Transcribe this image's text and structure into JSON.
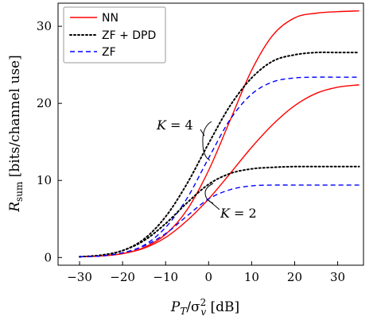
{
  "chart_data": {
    "type": "line",
    "xlabel": {
      "main": "P",
      "sub": "T",
      "sep": "/σ",
      "sup": "2",
      "sub2": "v",
      "unit": " [dB]"
    },
    "ylabel": {
      "main": "R",
      "sub": "sum",
      "unit": " [bits/channel use]"
    },
    "xlim": [
      -35,
      36
    ],
    "ylim": [
      -1,
      33
    ],
    "xticks": [
      -30,
      -20,
      -10,
      0,
      10,
      20,
      30
    ],
    "xtick_labels": [
      "−30",
      "−20",
      "−10",
      "0",
      "10",
      "20",
      "30"
    ],
    "yticks": [
      0,
      10,
      20,
      30
    ],
    "ytick_labels": [
      "0",
      "10",
      "20",
      "30"
    ],
    "grid": false,
    "legend_position": "top-left",
    "legend": [
      {
        "label": "NN",
        "color": "#ff0000",
        "dash": "solid"
      },
      {
        "label": "ZF + DPD",
        "color": "#000000",
        "dash": "dotted"
      },
      {
        "label": "ZF",
        "color": "#0000ff",
        "dash": "dashed"
      }
    ],
    "annotations": [
      {
        "text": "K = 4",
        "var": "K",
        "value": "4"
      },
      {
        "text": "K = 2",
        "var": "K",
        "value": "2"
      }
    ],
    "x": [
      -30,
      -25,
      -20,
      -15,
      -10,
      -5,
      0,
      5,
      10,
      15,
      20,
      25,
      30,
      35
    ],
    "series": [
      {
        "name": "NN",
        "group": "K = 4",
        "color": "#ff0000",
        "dash": "solid",
        "values": [
          0.1,
          0.2,
          0.5,
          1.3,
          3.0,
          6.2,
          11.3,
          17.8,
          24.3,
          28.9,
          31.1,
          31.7,
          31.9,
          32.0
        ]
      },
      {
        "name": "ZF + DPD",
        "group": "K = 4",
        "color": "#000000",
        "dash": "dotted",
        "values": [
          0.1,
          0.3,
          0.9,
          2.4,
          5.3,
          9.6,
          14.8,
          19.7,
          23.3,
          25.5,
          26.3,
          26.6,
          26.6,
          26.6
        ]
      },
      {
        "name": "ZF",
        "group": "K = 4",
        "color": "#0000ff",
        "dash": "dashed",
        "values": [
          0.1,
          0.2,
          0.6,
          1.6,
          3.9,
          7.7,
          12.9,
          17.9,
          21.2,
          22.8,
          23.3,
          23.4,
          23.4,
          23.4
        ]
      },
      {
        "name": "NN",
        "group": "K = 2",
        "color": "#ff0000",
        "dash": "solid",
        "values": [
          0.1,
          0.2,
          0.5,
          1.2,
          2.6,
          4.8,
          7.6,
          10.9,
          14.3,
          17.3,
          19.7,
          21.3,
          22.1,
          22.4
        ]
      },
      {
        "name": "ZF + DPD",
        "group": "K = 2",
        "color": "#000000",
        "dash": "dotted",
        "values": [
          0.1,
          0.3,
          0.9,
          2.2,
          4.4,
          7.1,
          9.5,
          10.9,
          11.5,
          11.7,
          11.8,
          11.8,
          11.8,
          11.8
        ]
      },
      {
        "name": "ZF",
        "group": "K = 2",
        "color": "#0000ff",
        "dash": "dashed",
        "values": [
          0.1,
          0.2,
          0.6,
          1.5,
          3.1,
          5.4,
          7.6,
          8.8,
          9.3,
          9.4,
          9.4,
          9.4,
          9.4,
          9.4
        ]
      }
    ]
  }
}
